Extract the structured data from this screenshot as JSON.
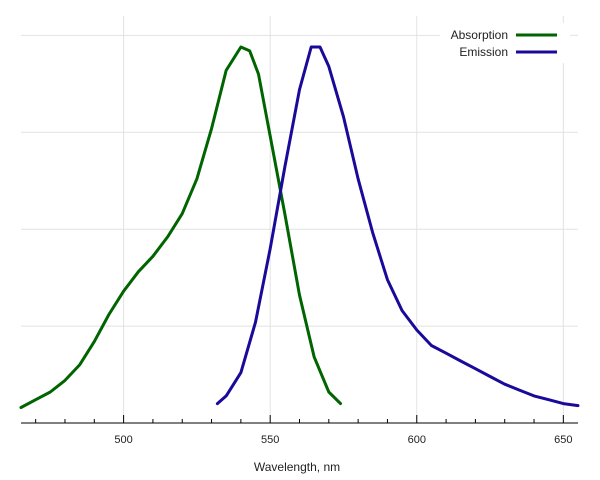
{
  "chart_data": {
    "type": "line",
    "title": "",
    "xlabel": "Wavelength, nm",
    "ylabel": "",
    "xlim": [
      465,
      655
    ],
    "ylim": [
      0,
      1.05
    ],
    "xticks": [
      500,
      550,
      600,
      650
    ],
    "x_minor_step": 10,
    "y_gridlines": [
      0.25,
      0.5,
      0.75,
      1.0
    ],
    "grid": true,
    "legend": "top-right",
    "series": [
      {
        "name": "Absorption",
        "color": "#006400",
        "points": [
          [
            465,
            0.04
          ],
          [
            470,
            0.06
          ],
          [
            475,
            0.08
          ],
          [
            480,
            0.11
          ],
          [
            485,
            0.15
          ],
          [
            490,
            0.21
          ],
          [
            495,
            0.28
          ],
          [
            500,
            0.34
          ],
          [
            505,
            0.39
          ],
          [
            510,
            0.43
          ],
          [
            515,
            0.48
          ],
          [
            520,
            0.54
          ],
          [
            525,
            0.63
          ],
          [
            530,
            0.76
          ],
          [
            535,
            0.91
          ],
          [
            540,
            0.97
          ],
          [
            543,
            0.96
          ],
          [
            546,
            0.9
          ],
          [
            550,
            0.74
          ],
          [
            555,
            0.54
          ],
          [
            560,
            0.33
          ],
          [
            565,
            0.17
          ],
          [
            570,
            0.08
          ],
          [
            574,
            0.05
          ]
        ]
      },
      {
        "name": "Emission",
        "color": "#1a0a9a",
        "points": [
          [
            532,
            0.05
          ],
          [
            535,
            0.07
          ],
          [
            540,
            0.13
          ],
          [
            545,
            0.26
          ],
          [
            550,
            0.45
          ],
          [
            555,
            0.66
          ],
          [
            560,
            0.86
          ],
          [
            564,
            0.97
          ],
          [
            567,
            0.97
          ],
          [
            570,
            0.92
          ],
          [
            575,
            0.79
          ],
          [
            580,
            0.63
          ],
          [
            585,
            0.49
          ],
          [
            590,
            0.37
          ],
          [
            595,
            0.29
          ],
          [
            600,
            0.24
          ],
          [
            605,
            0.2
          ],
          [
            610,
            0.18
          ],
          [
            615,
            0.16
          ],
          [
            620,
            0.14
          ],
          [
            625,
            0.12
          ],
          [
            630,
            0.1
          ],
          [
            635,
            0.085
          ],
          [
            640,
            0.07
          ],
          [
            645,
            0.06
          ],
          [
            650,
            0.05
          ],
          [
            655,
            0.045
          ]
        ]
      }
    ]
  }
}
